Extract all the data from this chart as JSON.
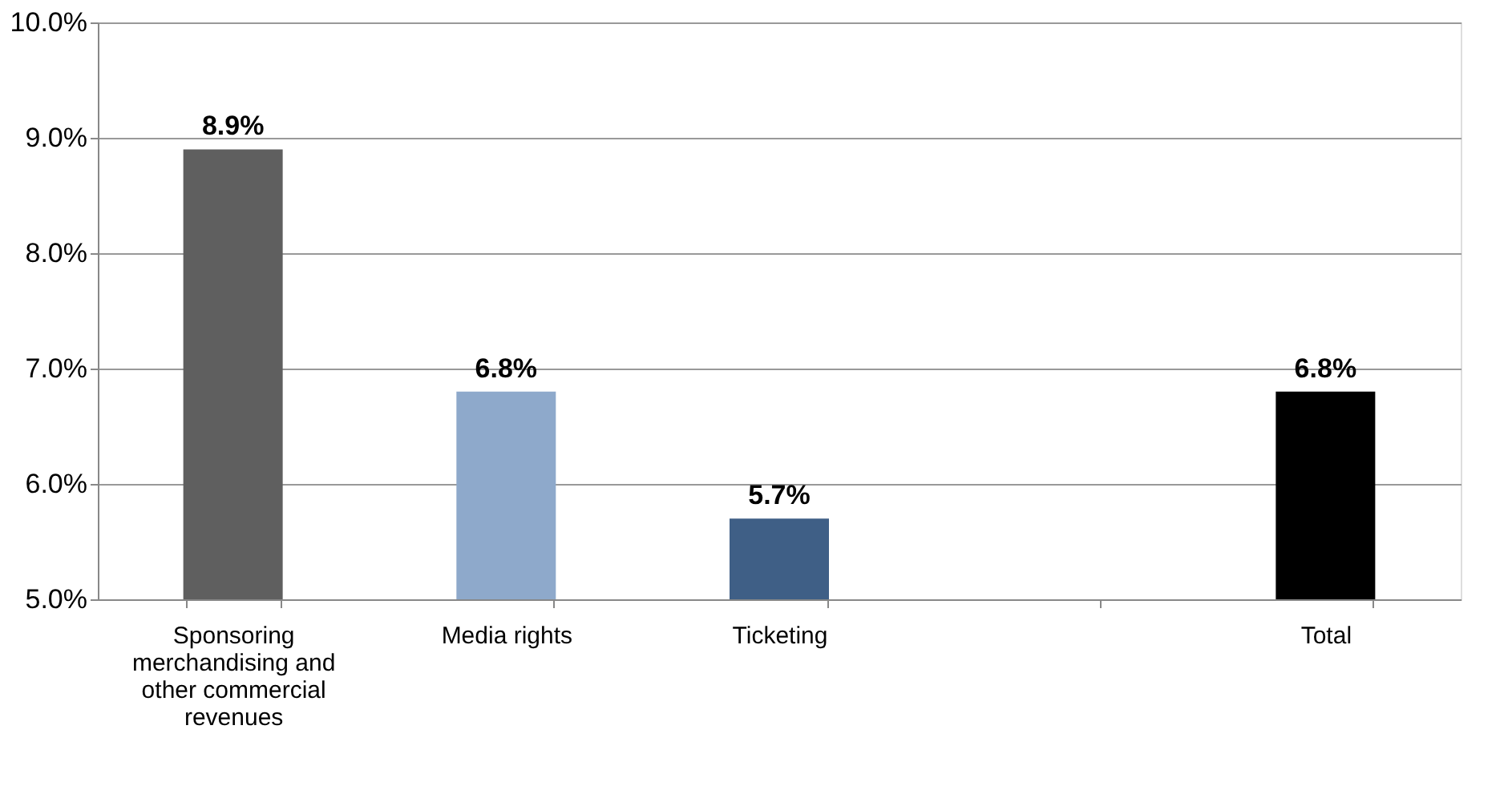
{
  "chart_data": {
    "type": "bar",
    "categories": [
      "Sponsoring merchandising and other commercial revenues",
      "Media rights",
      "Ticketing",
      null,
      "Total"
    ],
    "values": [
      8.9,
      6.8,
      5.7,
      null,
      6.8
    ],
    "colors": [
      "#5f5f5f",
      "#8ea9cb",
      "#3f5f86",
      "#ffffff",
      "#000000"
    ],
    "value_labels": [
      "8.9%",
      "6.8%",
      "5.7%",
      null,
      "6.8%"
    ],
    "ylim": [
      5,
      10
    ],
    "yticks": [
      {
        "value": 5,
        "label": "5.0%"
      },
      {
        "value": 6,
        "label": "6.0%"
      },
      {
        "value": 7,
        "label": "7.0%"
      },
      {
        "value": 8,
        "label": "8.0%"
      },
      {
        "value": 9,
        "label": "9.0%"
      },
      {
        "value": 10,
        "label": "10.0%"
      }
    ],
    "grid": "y"
  }
}
